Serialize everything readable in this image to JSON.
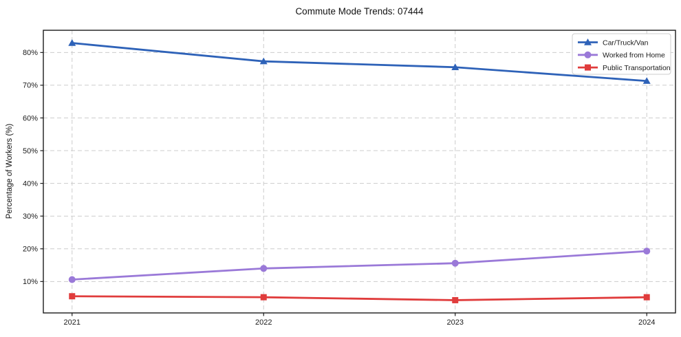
{
  "title": "Commute Mode Trends: 07444",
  "chart_data": {
    "type": "line",
    "title": "Commute Mode Trends: 07444",
    "xlabel": "",
    "ylabel": "Percentage of Workers (%)",
    "categories": [
      "2021",
      "2022",
      "2023",
      "2024"
    ],
    "series": [
      {
        "name": "Car/Truck/Van",
        "marker": "triangle",
        "color": "#2e62b8",
        "values": [
          82.9,
          77.3,
          75.5,
          71.3
        ]
      },
      {
        "name": "Worked from Home",
        "marker": "circle",
        "color": "#9a79d8",
        "values": [
          10.6,
          14.0,
          15.6,
          19.3
        ]
      },
      {
        "name": "Public Transportation",
        "marker": "square",
        "color": "#e03c3c",
        "values": [
          5.5,
          5.2,
          4.3,
          5.2
        ]
      }
    ],
    "y_ticks": [
      10,
      20,
      30,
      40,
      50,
      60,
      70,
      80
    ],
    "y_tick_labels": [
      "10%",
      "20%",
      "30%",
      "40%",
      "50%",
      "60%",
      "70%",
      "80%"
    ],
    "ylim": [
      0.4,
      86.8
    ],
    "grid": true,
    "grid_style": "dashed",
    "legend_position": "top-right",
    "colors": {
      "grid": "#cccccc",
      "axis": "#1a1a1a",
      "legend_border": "#cccccc",
      "legend_bg": "#ffffff"
    }
  }
}
